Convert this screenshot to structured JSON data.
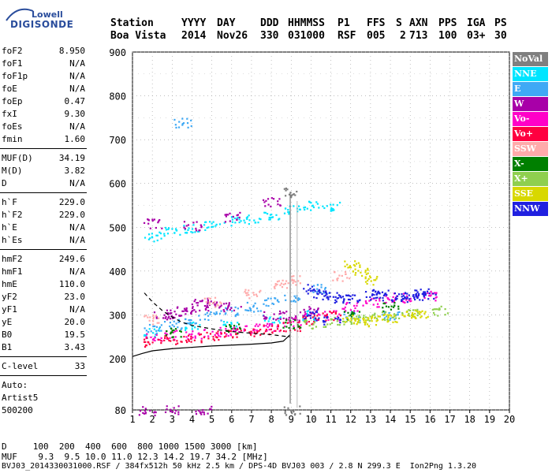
{
  "logo": {
    "top": "Lowell",
    "bottom": "DIGISONDE"
  },
  "header": {
    "row1": [
      "Station",
      "YYYY",
      "DAY",
      "DDD",
      "HHMMSS",
      "P1",
      "FFS",
      "S",
      "AXN",
      "PPS",
      "IGA",
      "PS"
    ],
    "row2": [
      "Boa Vista",
      "2014",
      "Nov26",
      "330",
      "031000",
      "RSF",
      "005",
      "2",
      "713",
      "100",
      "03+",
      "30"
    ]
  },
  "params": {
    "group1": [
      {
        "name": "foF2",
        "value": "8.950"
      },
      {
        "name": "foF1",
        "value": "N/A"
      },
      {
        "name": "foF1p",
        "value": "N/A"
      },
      {
        "name": "foE",
        "value": "N/A"
      },
      {
        "name": "foEp",
        "value": "0.47"
      },
      {
        "name": "fxI",
        "value": "9.30"
      },
      {
        "name": "foEs",
        "value": "N/A"
      },
      {
        "name": "fmin",
        "value": "1.60"
      }
    ],
    "group2": [
      {
        "name": "MUF(D)",
        "value": "34.19"
      },
      {
        "name": "M(D)",
        "value": "3.82"
      },
      {
        "name": "D",
        "value": "N/A"
      }
    ],
    "group3": [
      {
        "name": "h`F",
        "value": "229.0"
      },
      {
        "name": "h`F2",
        "value": "229.0"
      },
      {
        "name": "h`E",
        "value": "N/A"
      },
      {
        "name": "h`Es",
        "value": "N/A"
      }
    ],
    "group4": [
      {
        "name": "hmF2",
        "value": "249.6"
      },
      {
        "name": "hmF1",
        "value": "N/A"
      },
      {
        "name": "hmE",
        "value": "110.0"
      },
      {
        "name": "yF2",
        "value": "23.0"
      },
      {
        "name": "yF1",
        "value": "N/A"
      },
      {
        "name": "yE",
        "value": "20.0"
      },
      {
        "name": "B0",
        "value": "19.5"
      },
      {
        "name": "B1",
        "value": "3.43"
      }
    ],
    "clevel": {
      "name": "C-level",
      "value": "33"
    },
    "auto": [
      "Auto:",
      "Artist5",
      "500200"
    ]
  },
  "legend": [
    {
      "label": "NoVal",
      "color": "#7f7f7f"
    },
    {
      "label": "NNE",
      "color": "#00e5ff"
    },
    {
      "label": "E",
      "color": "#3fa9f5"
    },
    {
      "label": "W",
      "color": "#a800a8"
    },
    {
      "label": "Vo-",
      "color": "#ff00c8"
    },
    {
      "label": "Vo+",
      "color": "#ff0040"
    },
    {
      "label": "SSW",
      "color": "#ffaaaa"
    },
    {
      "label": "X-",
      "color": "#007f00"
    },
    {
      "label": "X+",
      "color": "#8fcf4f"
    },
    {
      "label": "SSE",
      "color": "#d8d800"
    },
    {
      "label": "NNW",
      "color": "#2020e0"
    }
  ],
  "footer": {
    "d_row": "D     100  200  400  600  800 1000 1500 3000 [km]",
    "muf_row": "MUF    9.3  9.5 10.0 11.0 12.3 14.2 19.7 34.2 [MHz]",
    "file_row": "BVJ03_2014330031000.RSF / 384fx512h 50 kHz 2.5 km / DPS-4D BVJ03 003 / 2.8 N 299.3 E  Ion2Png 1.3.20"
  },
  "chart_data": {
    "type": "scatter",
    "xlabel": "",
    "ylabel": "",
    "xlim": [
      1,
      20
    ],
    "ylim": [
      80,
      900
    ],
    "xticks": [
      1,
      2,
      3,
      4,
      5,
      6,
      7,
      8,
      9,
      10,
      11,
      12,
      13,
      14,
      15,
      16,
      17,
      18,
      19,
      20
    ],
    "yticks": [
      80,
      200,
      300,
      400,
      500,
      600,
      700,
      800,
      900
    ],
    "grid": true,
    "legend_position": "right",
    "profile": [
      [
        1.6,
        350
      ],
      [
        2.0,
        330
      ],
      [
        2.5,
        310
      ],
      [
        3.0,
        295
      ],
      [
        3.5,
        283
      ],
      [
        4.0,
        276
      ],
      [
        5.0,
        268
      ],
      [
        6.0,
        262
      ],
      [
        7.0,
        258
      ],
      [
        8.0,
        255
      ],
      [
        8.95,
        249.6
      ]
    ],
    "hprime_trace": [
      [
        1.0,
        205
      ],
      [
        1.5,
        212
      ],
      [
        2.0,
        218
      ],
      [
        3.0,
        223
      ],
      [
        4.0,
        226
      ],
      [
        5.0,
        229
      ],
      [
        6.0,
        231
      ],
      [
        7.0,
        233
      ],
      [
        8.0,
        236
      ],
      [
        8.6,
        240
      ],
      [
        8.95,
        255
      ]
    ],
    "series": [
      {
        "name": "NoVal",
        "points": [
          [
            9.0,
            80
          ],
          [
            9.0,
            580
          ]
        ]
      },
      {
        "name": "NNE",
        "points": [
          [
            2.0,
            480
          ],
          [
            3.0,
            490
          ],
          [
            4.0,
            500
          ],
          [
            5.0,
            505
          ],
          [
            6.0,
            515
          ],
          [
            7.0,
            520
          ],
          [
            8.0,
            530
          ],
          [
            9.0,
            540
          ],
          [
            10.0,
            550
          ],
          [
            11.0,
            550
          ],
          [
            2.0,
            260
          ],
          [
            4.0,
            275
          ],
          [
            6.0,
            280
          ],
          [
            8.0,
            290
          ],
          [
            10.0,
            300
          ]
        ]
      },
      {
        "name": "E",
        "points": [
          [
            2.0,
            270
          ],
          [
            3.0,
            280
          ],
          [
            4.0,
            290
          ],
          [
            5.0,
            300
          ],
          [
            6.0,
            310
          ],
          [
            7.0,
            320
          ],
          [
            8.0,
            330
          ],
          [
            9.0,
            340
          ],
          [
            3.5,
            740
          ],
          [
            10.5,
            360
          ],
          [
            12.0,
            300
          ],
          [
            14.0,
            300
          ]
        ]
      },
      {
        "name": "W",
        "points": [
          [
            2.0,
            510
          ],
          [
            4.0,
            505
          ],
          [
            6.0,
            525
          ],
          [
            8.0,
            560
          ],
          [
            2.5,
            300
          ],
          [
            3.0,
            305
          ],
          [
            3.5,
            310
          ],
          [
            4.0,
            320
          ],
          [
            4.5,
            330
          ],
          [
            5.0,
            320
          ],
          [
            6.0,
            320
          ],
          [
            8.0,
            300
          ],
          [
            9.0,
            300
          ],
          [
            10.0,
            310
          ],
          [
            1.7,
            80
          ],
          [
            3.0,
            80
          ],
          [
            4.5,
            80
          ]
        ]
      },
      {
        "name": "Vo-",
        "points": [
          [
            2.0,
            250
          ],
          [
            3.0,
            255
          ],
          [
            4.0,
            258
          ],
          [
            5.0,
            262
          ],
          [
            6.0,
            265
          ],
          [
            7.0,
            270
          ],
          [
            8.0,
            275
          ],
          [
            9.0,
            285
          ],
          [
            10.0,
            295
          ],
          [
            11.0,
            300
          ],
          [
            12.0,
            320
          ],
          [
            13.0,
            330
          ],
          [
            14.0,
            340
          ],
          [
            15.0,
            340
          ],
          [
            16.0,
            345
          ]
        ]
      },
      {
        "name": "Vo+",
        "points": [
          [
            2.0,
            240
          ],
          [
            3.0,
            245
          ],
          [
            4.0,
            250
          ],
          [
            5.0,
            255
          ],
          [
            6.0,
            258
          ],
          [
            7.0,
            262
          ],
          [
            8.0,
            268
          ],
          [
            9.0,
            275
          ],
          [
            10.0,
            290
          ],
          [
            11.0,
            300
          ]
        ]
      },
      {
        "name": "SSW",
        "points": [
          [
            2.0,
            290
          ],
          [
            5.0,
            330
          ],
          [
            7.0,
            350
          ],
          [
            8.5,
            370
          ],
          [
            9.0,
            380
          ],
          [
            11.5,
            390
          ]
        ]
      },
      {
        "name": "X-",
        "points": [
          [
            3.0,
            260
          ],
          [
            6.0,
            270
          ],
          [
            9.0,
            280
          ],
          [
            12.0,
            300
          ],
          [
            14.0,
            320
          ]
        ]
      },
      {
        "name": "X+",
        "points": [
          [
            10.0,
            280
          ],
          [
            11.0,
            285
          ],
          [
            12.0,
            290
          ],
          [
            13.0,
            295
          ],
          [
            14.0,
            300
          ],
          [
            15.0,
            305
          ],
          [
            16.5,
            310
          ]
        ]
      },
      {
        "name": "SSE",
        "points": [
          [
            12.0,
            420
          ],
          [
            12.5,
            400
          ],
          [
            13.0,
            380
          ],
          [
            12.0,
            290
          ],
          [
            12.5,
            285
          ],
          [
            13.0,
            288
          ],
          [
            14.0,
            295
          ],
          [
            15.0,
            300
          ],
          [
            15.5,
            305
          ]
        ]
      },
      {
        "name": "NNW",
        "points": [
          [
            10.0,
            360
          ],
          [
            10.5,
            350
          ],
          [
            11.0,
            345
          ],
          [
            11.5,
            340
          ],
          [
            12.0,
            340
          ],
          [
            13.0,
            345
          ],
          [
            13.5,
            350
          ],
          [
            14.0,
            345
          ],
          [
            14.5,
            340
          ],
          [
            15.0,
            345
          ],
          [
            15.5,
            350
          ],
          [
            16.0,
            345
          ],
          [
            11.0,
            290
          ],
          [
            10.0,
            300
          ]
        ]
      }
    ]
  }
}
